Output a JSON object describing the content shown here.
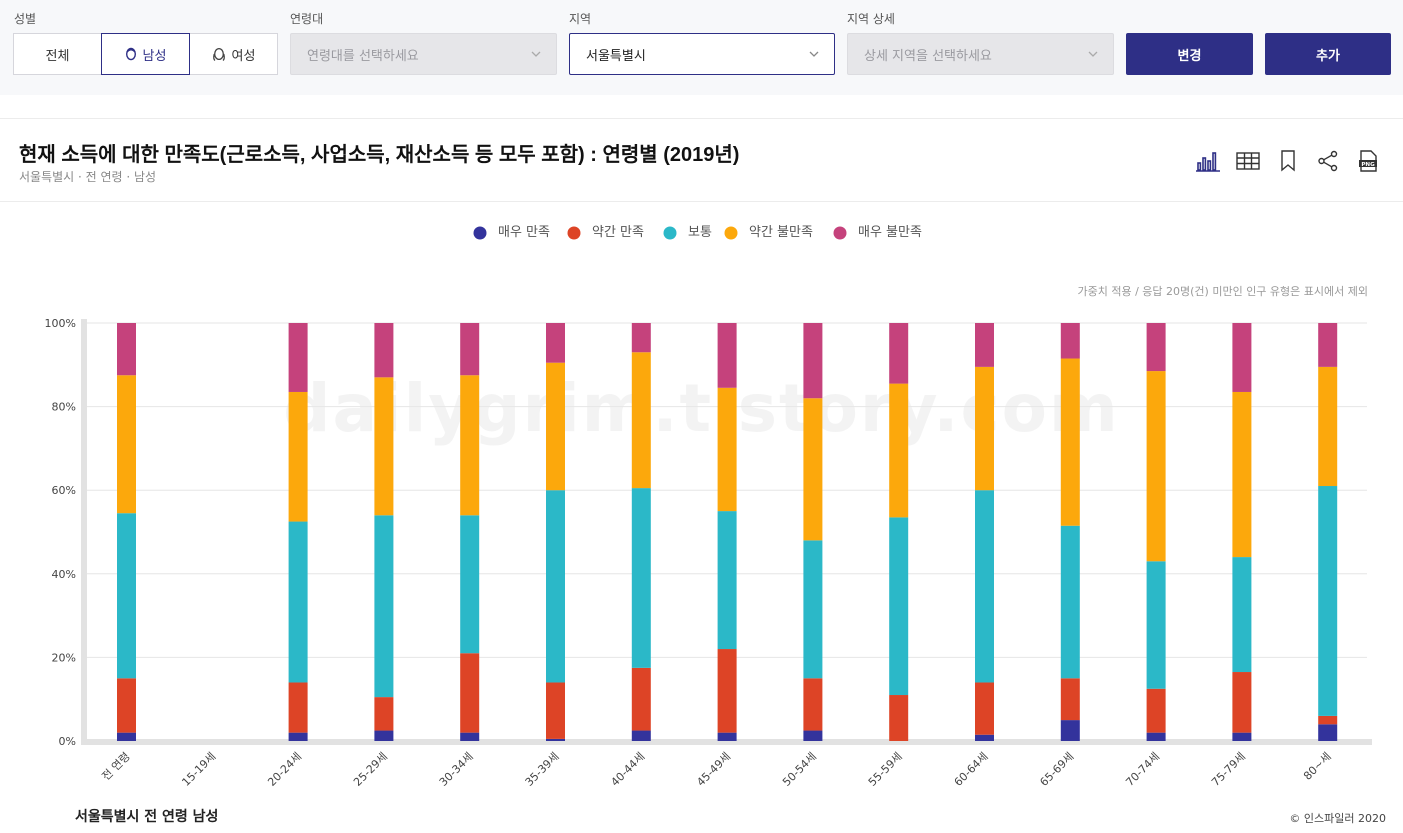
{
  "filters": {
    "gender": {
      "label": "성별",
      "options": [
        "전체",
        "남성",
        "여성"
      ],
      "selected": "남성"
    },
    "age": {
      "label": "연령대",
      "placeholder": "연령대를 선택하세요"
    },
    "region": {
      "label": "지역",
      "value": "서울특별시"
    },
    "region_detail": {
      "label": "지역 상세",
      "placeholder": "상세 지역을 선택하세요"
    },
    "change_button": "변경",
    "add_button": "추가"
  },
  "header": {
    "title": "현재 소득에 대한 만족도(근로소득, 사업소득, 재산소득 등 모두 포함) : 연령별 (2019년)",
    "subtitle": "서울특별시 · 전 연령 · 남성"
  },
  "tools": [
    "bar-chart-icon",
    "table-icon",
    "bookmark-icon",
    "share-icon",
    "png-download-icon"
  ],
  "watermark": "dailygrim.tistory.com",
  "note": "가중치 적용 / 응답 20명(건) 미만인 인구 유형은 표시에서 제외",
  "footer": {
    "left": "서울특별시 전 연령 남성",
    "right": "© 인스파일러 2020"
  },
  "chart_data": {
    "type": "bar",
    "stacked": true,
    "categories": [
      "전 연령",
      "15-19세",
      "20-24세",
      "25-29세",
      "30-34세",
      "35-39세",
      "40-44세",
      "45-49세",
      "50-54세",
      "55-59세",
      "60-64세",
      "65-69세",
      "70-74세",
      "75-79세",
      "80~세"
    ],
    "yticks": [
      "0%",
      "20%",
      "40%",
      "60%",
      "80%",
      "100%"
    ],
    "ylim": [
      0,
      100
    ],
    "legend_position": "top-center",
    "series": [
      {
        "name": "매우 만족",
        "color": "#33339c",
        "values": [
          2,
          null,
          2,
          2.5,
          2,
          0.5,
          2.5,
          2,
          2.5,
          0,
          1.5,
          5,
          2,
          2,
          4
        ]
      },
      {
        "name": "약간 만족",
        "color": "#dd4426",
        "values": [
          13,
          null,
          12,
          8,
          19,
          13.5,
          15,
          20,
          12.5,
          11,
          12.5,
          10,
          10.5,
          14.5,
          2
        ]
      },
      {
        "name": "보통",
        "color": "#2bb8c8",
        "values": [
          39.5,
          null,
          38.5,
          43.5,
          33,
          46,
          43,
          33,
          33,
          42.5,
          46,
          36.5,
          30.5,
          27.5,
          55
        ]
      },
      {
        "name": "약간 불만족",
        "color": "#fca80c",
        "values": [
          33,
          null,
          31,
          33,
          33.5,
          30.5,
          32.5,
          29.5,
          34,
          32,
          29.5,
          40,
          45.5,
          39.5,
          28.5
        ]
      },
      {
        "name": "매우 불만족",
        "color": "#c5427c",
        "values": [
          12.5,
          null,
          16.5,
          13,
          12.5,
          9.5,
          7,
          15.5,
          18,
          14.5,
          10.5,
          8.5,
          11.5,
          16.5,
          10.5
        ]
      }
    ]
  }
}
